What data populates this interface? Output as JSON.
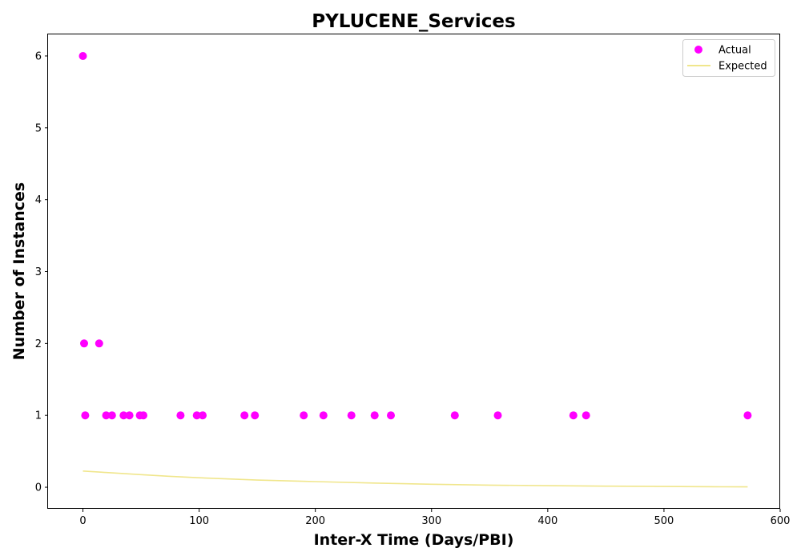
{
  "chart_data": {
    "type": "scatter",
    "title": "PYLUCENE_Services",
    "xlabel": "Inter-X Time (Days/PBI)",
    "ylabel": "Number of Instances",
    "xlim": [
      -30,
      600
    ],
    "ylim": [
      -0.3,
      6.3
    ],
    "xticks": [
      0,
      100,
      200,
      300,
      400,
      500,
      600
    ],
    "yticks": [
      0,
      1,
      2,
      3,
      4,
      5,
      6
    ],
    "grid": false,
    "legend_position": "top-right",
    "series": [
      {
        "name": "Actual",
        "kind": "scatter",
        "color": "#ff00ff",
        "points": [
          [
            0,
            6
          ],
          [
            1,
            2
          ],
          [
            2,
            1
          ],
          [
            14,
            2
          ],
          [
            20,
            1
          ],
          [
            25,
            1
          ],
          [
            35,
            1
          ],
          [
            40,
            1
          ],
          [
            49,
            1
          ],
          [
            52,
            1
          ],
          [
            84,
            1
          ],
          [
            98,
            1
          ],
          [
            103,
            1
          ],
          [
            139,
            1
          ],
          [
            148,
            1
          ],
          [
            190,
            1
          ],
          [
            207,
            1
          ],
          [
            231,
            1
          ],
          [
            251,
            1
          ],
          [
            265,
            1
          ],
          [
            320,
            1
          ],
          [
            357,
            1
          ],
          [
            422,
            1
          ],
          [
            433,
            1
          ],
          [
            572,
            1
          ]
        ]
      },
      {
        "name": "Expected",
        "kind": "line",
        "color": "#f0e68c",
        "points": [
          [
            0,
            0.225
          ],
          [
            25,
            0.2
          ],
          [
            50,
            0.175
          ],
          [
            75,
            0.152
          ],
          [
            100,
            0.132
          ],
          [
            150,
            0.1
          ],
          [
            200,
            0.078
          ],
          [
            250,
            0.058
          ],
          [
            300,
            0.042
          ],
          [
            350,
            0.03
          ],
          [
            400,
            0.022
          ],
          [
            450,
            0.015
          ],
          [
            500,
            0.01
          ],
          [
            550,
            0.006
          ],
          [
            572,
            0.005
          ]
        ]
      }
    ]
  }
}
